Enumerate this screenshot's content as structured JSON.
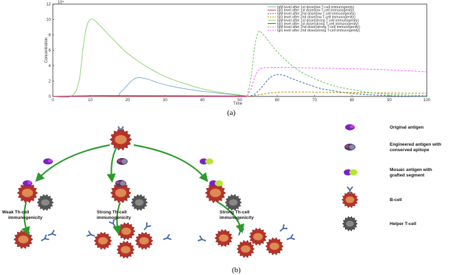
{
  "chart_data": {
    "type": "line",
    "xlabel": "Time",
    "ylabel": "Concentration",
    "xlim": [
      0,
      100
    ],
    "ylim": [
      0,
      12
    ],
    "y_multiplier": "10⁴",
    "xticks": [
      "0",
      "10",
      "20",
      "30",
      "40",
      "50",
      "60",
      "70",
      "80",
      "90",
      "100"
    ],
    "yticks": [
      "0",
      "2",
      "4",
      "6",
      "8",
      "10",
      "12"
    ],
    "legend_position": "top-right",
    "grid": false,
    "series": [
      {
        "name": "IgM level after 1st dose(low T-cell immunogenity)",
        "color": "#7aaed6",
        "dash": "",
        "x": [
          0,
          16,
          18,
          20,
          21,
          22,
          23,
          24,
          26,
          28,
          32,
          38,
          45,
          50,
          52
        ],
        "values": [
          0,
          0.05,
          0.5,
          1.5,
          2.0,
          2.35,
          2.45,
          2.4,
          2.15,
          1.8,
          1.3,
          0.8,
          0.4,
          0.15,
          0
        ]
      },
      {
        "name": "IgG level after 1st dose(low T-cell immunogenity)",
        "color": "#c0392b",
        "dash": "",
        "x": [
          0,
          20,
          40,
          52
        ],
        "values": [
          0,
          0.03,
          0.02,
          0
        ]
      },
      {
        "name": "IgM level after 2nd dose(low T-cell immunogenity)",
        "color": "#2e6da4",
        "dash": "3,2",
        "x": [
          52,
          54,
          56,
          58,
          60,
          62,
          64,
          68,
          72,
          80,
          90,
          100
        ],
        "values": [
          0,
          0.3,
          1.3,
          2.4,
          2.85,
          2.7,
          2.3,
          1.6,
          1.0,
          0.4,
          0.1,
          0.02
        ]
      },
      {
        "name": "IgG level after 2nd dose(low T-cell immunogenity)",
        "color": "#b8860b",
        "dash": "3,2",
        "x": [
          52,
          55,
          58,
          60,
          65,
          70,
          80,
          90,
          100
        ],
        "values": [
          0,
          0.2,
          0.45,
          0.55,
          0.55,
          0.55,
          0.5,
          0.45,
          0.42
        ]
      },
      {
        "name": "IgM level after 1st dose(strong T-cell immunogenity)",
        "color": "#8fd16b",
        "dash": "",
        "x": [
          0,
          5,
          7,
          8,
          9,
          10,
          11,
          12,
          14,
          17,
          20,
          25,
          30,
          35,
          40,
          45,
          50,
          52
        ],
        "values": [
          0,
          0.05,
          2.0,
          6.0,
          9.0,
          10.0,
          9.95,
          9.5,
          8.5,
          7.0,
          5.6,
          3.9,
          2.6,
          1.7,
          1.0,
          0.5,
          0.2,
          0
        ]
      },
      {
        "name": "IgG level after 1st dose(strong T-cell immunogenity)",
        "color": "#c71585",
        "dash": "",
        "x": [
          0,
          10,
          20,
          40,
          52
        ],
        "values": [
          0,
          0.1,
          0.1,
          0.08,
          0.05
        ]
      },
      {
        "name": "IgM level after 2nd dose(strong T-cell immunogenity)",
        "color": "#66c05a",
        "dash": "3,2",
        "x": [
          52,
          53,
          54,
          55,
          56,
          58,
          60,
          63,
          66,
          70,
          75,
          80,
          85,
          90,
          100
        ],
        "values": [
          0,
          2.5,
          6.5,
          8.4,
          8.2,
          7.0,
          5.8,
          4.4,
          3.3,
          2.3,
          1.4,
          0.9,
          0.5,
          0.3,
          0.1
        ]
      },
      {
        "name": "IgG level after 2nd dose(strong T-cell immunogenity)",
        "color": "#ff55ff",
        "dash": "3,2",
        "x": [
          52,
          53,
          54,
          55,
          56,
          58,
          60,
          70,
          80,
          90,
          100
        ],
        "values": [
          0.05,
          1.0,
          2.5,
          3.4,
          3.7,
          3.75,
          3.78,
          3.7,
          3.6,
          3.45,
          3.2
        ]
      }
    ]
  },
  "captions": {
    "a": "(a)",
    "b": "(b)"
  },
  "diagram": {
    "branch_labels": [
      "Weak Th-cell immunogenicity",
      "Strong Th-cell immunogenicity",
      "Strong Th-cell immunogenicity"
    ],
    "key": [
      {
        "label_lines": [
          "Original antigen"
        ],
        "icon": "original-antigen-icon"
      },
      {
        "label_lines": [
          "Engineered antigen with",
          "conserved epitope"
        ],
        "icon": "engineered-antigen-icon"
      },
      {
        "label_lines": [
          "Mosaic antigen with",
          "grafted segment"
        ],
        "icon": "mosaic-antigen-icon"
      },
      {
        "label_lines": [
          "B-cell"
        ],
        "icon": "b-cell-icon"
      },
      {
        "label_lines": [
          "Helper T-cell"
        ],
        "icon": "helper-t-cell-icon"
      }
    ],
    "colors": {
      "bcell": "#b5322a",
      "bcell_core": "#e08a55",
      "tcell": "#555555",
      "arrow": "#2c9a2c",
      "antibody": "#4a6fa5",
      "purple": "#7b22c4",
      "lime": "#b6e635"
    }
  }
}
